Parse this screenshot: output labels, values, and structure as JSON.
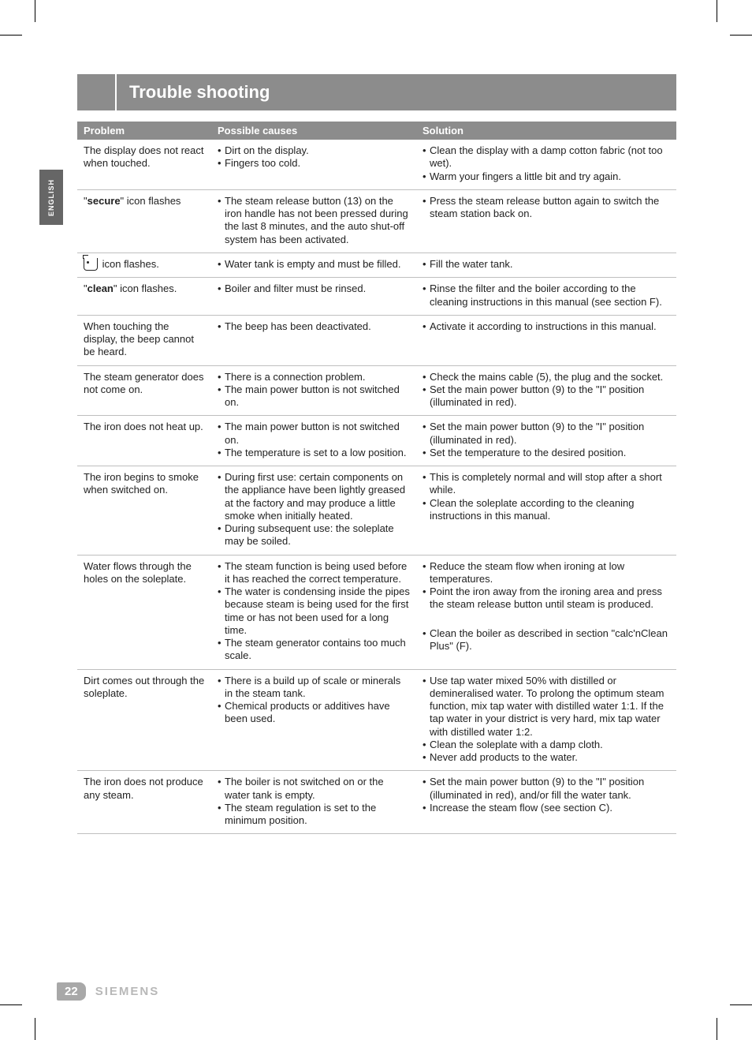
{
  "language_tab": "ENGLISH",
  "title": "Trouble shooting",
  "page_number": "22",
  "brand": "SIEMENS",
  "table": {
    "headers": [
      "Problem",
      "Possible causes",
      "Solution"
    ],
    "rows": [
      {
        "problem": "The display does not react when touched.",
        "causes": [
          "Dirt on the display.",
          "Fingers too cold."
        ],
        "solution": [
          "Clean the display with a damp cotton fabric (not too wet).",
          "Warm your fingers a little bit and try again."
        ]
      },
      {
        "problem_prefix": "\"",
        "problem_bold": "secure",
        "problem_suffix": "\" icon flashes",
        "causes": [
          "The steam release button (13) on the iron handle has not been pressed during the last 8 minutes, and the auto shut-off system has been activated."
        ],
        "solution": [
          "Press the steam release button again to switch the steam station back on."
        ]
      },
      {
        "problem_icon": true,
        "problem_suffix": " icon flashes.",
        "causes": [
          "Water tank is empty and must be filled."
        ],
        "solution": [
          "Fill the water tank."
        ]
      },
      {
        "problem_prefix": "\"",
        "problem_bold": "clean",
        "problem_suffix": "\" icon flashes.",
        "causes": [
          "Boiler and filter must be rinsed."
        ],
        "solution": [
          "Rinse the filter and the boiler according to the cleaning instructions in this manual (see section F)."
        ]
      },
      {
        "problem": "When touching the display, the beep cannot be heard.",
        "causes": [
          "The beep has been deactivated."
        ],
        "solution": [
          "Activate it according to instructions in this manual."
        ]
      },
      {
        "problem": "The steam generator does not come on.",
        "causes": [
          "There is a connection problem.",
          "The main power button is not switched on."
        ],
        "solution": [
          "Check the mains cable (5), the plug and the socket.",
          "Set the main power button (9) to the \"I\" position (illuminated in red)."
        ]
      },
      {
        "problem": "The iron does not heat up.",
        "causes": [
          "The main power button is not switched on.",
          "The temperature is set to a low position."
        ],
        "solution": [
          "Set the main power button (9) to the \"I\" position (illuminated in red).",
          "Set the temperature to the desired position."
        ]
      },
      {
        "problem": "The iron begins to smoke when switched on.",
        "causes": [
          "During first use: certain components on the appliance have been lightly greased at the factory and may produce a little smoke when initially heated.",
          "During subsequent use: the soleplate may be soiled."
        ],
        "solution": [
          "This is completely normal and will stop after a short while.",
          "Clean the soleplate according to the cleaning instructions in this manual."
        ]
      },
      {
        "problem": "Water flows through the holes on the soleplate.",
        "causes": [
          "The steam function is being used before it has reached the correct temperature.",
          "The water is condensing inside the pipes because steam is being used for the first time or has not been used for a long time.",
          "The steam generator contains too much scale."
        ],
        "solution": [
          "Reduce the steam flow when ironing at low temperatures.",
          "Point the iron away from the ironing area and press the steam release button until steam is produced.",
          "Clean the boiler as described in section \"calc'nClean Plus\" (F)."
        ]
      },
      {
        "problem": "Dirt comes out through the soleplate.",
        "causes": [
          "There is a build up of scale or minerals in the steam tank.",
          "Chemical products or additives have been used."
        ],
        "solution": [
          "Use tap water mixed 50% with distilled or demineralised water. To prolong the optimum steam function, mix tap water with distilled water 1:1. If the tap water in your district is very hard, mix tap water with distilled water 1:2.",
          "Clean the soleplate with a damp cloth.",
          "Never add products to the water."
        ]
      },
      {
        "problem": "The iron does not produce any steam.",
        "causes": [
          "The boiler is not switched on or the water tank is empty.",
          "The steam regulation is set to the minimum position."
        ],
        "solution": [
          "Set the main power button (9) to the \"I\" position (illuminated in red), and/or fill the water tank.",
          "Increase the steam flow (see section C)."
        ]
      }
    ]
  }
}
